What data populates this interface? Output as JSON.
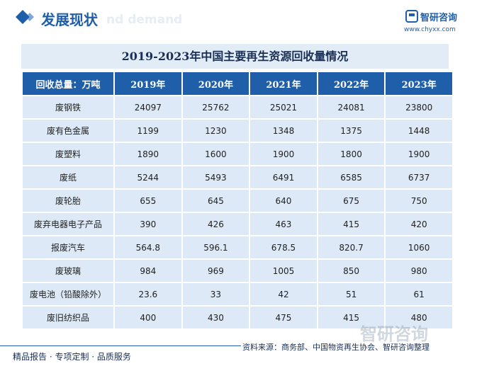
{
  "header": {
    "title": "发展现状",
    "watermark": "nd demand",
    "logo": "智研咨询",
    "url": "www.chyxx.com"
  },
  "table": {
    "title": "2019-2023年中国主要再生资源回收量情况",
    "columns": [
      "回收总量：万吨",
      "2019年",
      "2020年",
      "2021年",
      "2022年",
      "2023年"
    ],
    "rows": [
      [
        "废钢铁",
        "24097",
        "25762",
        "25021",
        "24081",
        "23800"
      ],
      [
        "废有色金属",
        "1199",
        "1230",
        "1348",
        "1375",
        "1448"
      ],
      [
        "废塑料",
        "1890",
        "1600",
        "1900",
        "1800",
        "1900"
      ],
      [
        "废纸",
        "5244",
        "5493",
        "6491",
        "6585",
        "6737"
      ],
      [
        "废轮胎",
        "655",
        "645",
        "640",
        "675",
        "750"
      ],
      [
        "废弃电器电子产品",
        "390",
        "426",
        "463",
        "415",
        "420"
      ],
      [
        "报废汽车",
        "564.8",
        "596.1",
        "678.5",
        "820.7",
        "1060"
      ],
      [
        "废玻璃",
        "984",
        "969",
        "1005",
        "850",
        "980"
      ],
      [
        "废电池（铅酸除外）",
        "23.6",
        "33",
        "42",
        "51",
        "61"
      ],
      [
        "废旧纺织品",
        "400",
        "430",
        "475",
        "415",
        "480"
      ]
    ]
  },
  "footer": {
    "slogan": "精品报告 · 专项定制 · 品质服务",
    "source": "资料来源：商务部、中国物资再生协会、智研咨询整理",
    "watermark": "智研咨询"
  }
}
